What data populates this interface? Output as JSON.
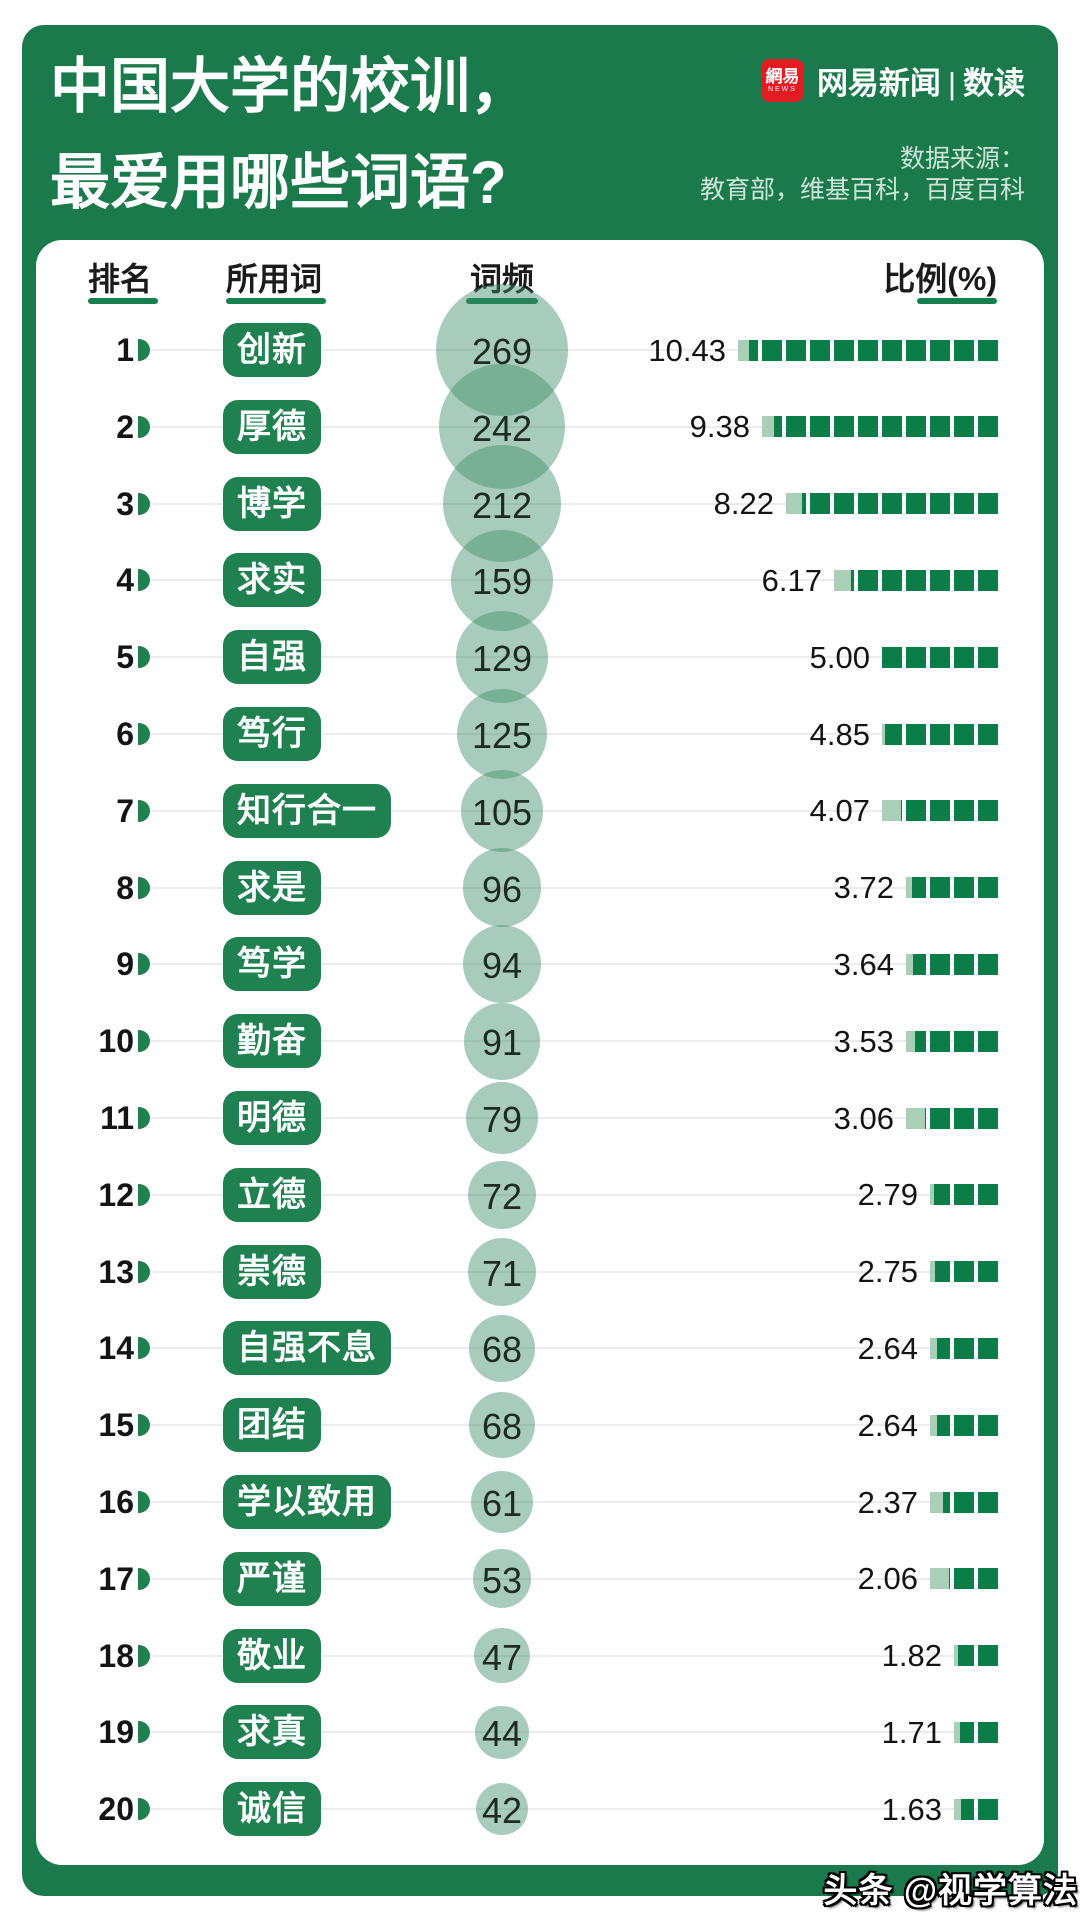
{
  "header": {
    "title_line1": "中国大学的校训，",
    "title_line2": "最爱用哪些词语?",
    "brand": {
      "logo_text": "網易",
      "logo_sub": "NEWS",
      "name": "网易新闻",
      "divider": "|",
      "section": "数读"
    },
    "source_label": "数据来源：",
    "source_value": "教育部，维基百科，百度百科"
  },
  "table": {
    "col_rank": "排名",
    "col_word": "所用词",
    "col_freq": "词频",
    "col_ratio": "比例(%)",
    "rows": [
      {
        "rank": "1",
        "word": "创新",
        "freq": 269,
        "ratio": "10.43"
      },
      {
        "rank": "2",
        "word": "厚德",
        "freq": 242,
        "ratio": "9.38"
      },
      {
        "rank": "3",
        "word": "博学",
        "freq": 212,
        "ratio": "8.22"
      },
      {
        "rank": "4",
        "word": "求实",
        "freq": 159,
        "ratio": "6.17"
      },
      {
        "rank": "5",
        "word": "自强",
        "freq": 129,
        "ratio": "5.00"
      },
      {
        "rank": "6",
        "word": "笃行",
        "freq": 125,
        "ratio": "4.85"
      },
      {
        "rank": "7",
        "word": "知行合一",
        "freq": 105,
        "ratio": "4.07"
      },
      {
        "rank": "8",
        "word": "求是",
        "freq": 96,
        "ratio": "3.72"
      },
      {
        "rank": "9",
        "word": "笃学",
        "freq": 94,
        "ratio": "3.64"
      },
      {
        "rank": "10",
        "word": "勤奋",
        "freq": 91,
        "ratio": "3.53"
      },
      {
        "rank": "11",
        "word": "明德",
        "freq": 79,
        "ratio": "3.06"
      },
      {
        "rank": "12",
        "word": "立德",
        "freq": 72,
        "ratio": "2.79"
      },
      {
        "rank": "13",
        "word": "崇德",
        "freq": 71,
        "ratio": "2.75"
      },
      {
        "rank": "14",
        "word": "自强不息",
        "freq": 68,
        "ratio": "2.64"
      },
      {
        "rank": "15",
        "word": "团结",
        "freq": 68,
        "ratio": "2.64"
      },
      {
        "rank": "16",
        "word": "学以致用",
        "freq": 61,
        "ratio": "2.37"
      },
      {
        "rank": "17",
        "word": "严谨",
        "freq": 53,
        "ratio": "2.06"
      },
      {
        "rank": "18",
        "word": "敬业",
        "freq": 47,
        "ratio": "1.82"
      },
      {
        "rank": "19",
        "word": "求真",
        "freq": 44,
        "ratio": "1.71"
      },
      {
        "rank": "20",
        "word": "诚信",
        "freq": 42,
        "ratio": "1.63"
      }
    ]
  },
  "footer": {
    "watermark": "头条 @视学算法"
  },
  "colors": {
    "frame_green": "#1b7a4c",
    "badge_green": "#1f8050",
    "underline_green": "#15804e",
    "square_green": "#0c7c49",
    "square_light": "#a9cfb7",
    "bubble_green": "rgba(63,143,104,0.45)",
    "logo_red": "#e31b23"
  },
  "chart_data": {
    "type": "bar",
    "title": "中国大学的校训，最爱用哪些词语?",
    "source": "教育部，维基百科，百度百科",
    "categories": [
      "创新",
      "厚德",
      "博学",
      "求实",
      "自强",
      "笃行",
      "知行合一",
      "求是",
      "笃学",
      "勤奋",
      "明德",
      "立德",
      "崇德",
      "自强不息",
      "团结",
      "学以致用",
      "严谨",
      "敬业",
      "求真",
      "诚信"
    ],
    "series": [
      {
        "name": "词频",
        "values": [
          269,
          242,
          212,
          159,
          129,
          125,
          105,
          96,
          94,
          91,
          79,
          72,
          71,
          68,
          68,
          61,
          53,
          47,
          44,
          42
        ]
      },
      {
        "name": "比例(%)",
        "values": [
          10.43,
          9.38,
          8.22,
          6.17,
          5.0,
          4.85,
          4.07,
          3.72,
          3.64,
          3.53,
          3.06,
          2.79,
          2.75,
          2.64,
          2.64,
          2.37,
          2.06,
          1.82,
          1.71,
          1.63
        ]
      }
    ],
    "layout": "ranked rows; 词频 shown as overlapping area-scaled bubbles, 比例 shown as right-aligned unit squares (one square = 1%, leftmost square partially filled)"
  }
}
